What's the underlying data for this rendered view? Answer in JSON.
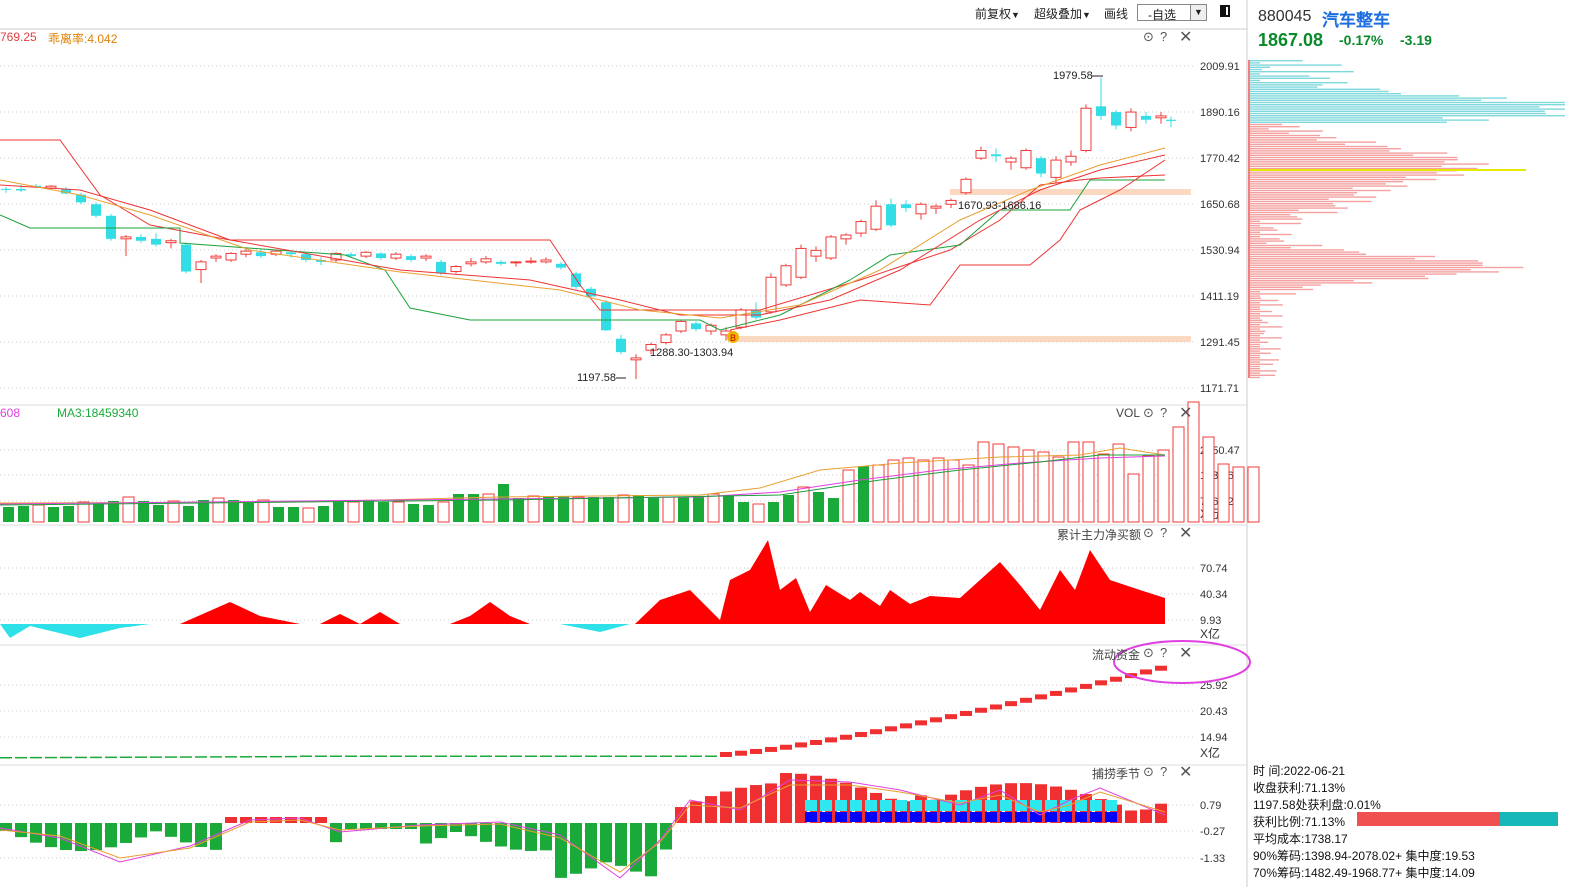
{
  "toolbar": {
    "fuquan": "前复权",
    "chaoji": "超级叠加",
    "huaxian": "画线",
    "zixuan": "-自选"
  },
  "stock": {
    "code": "880045",
    "name": "汽车整车",
    "price": "1867.08",
    "change_pct": "-0.17%",
    "change": "-3.19"
  },
  "main_panel": {
    "left_value": "769.25",
    "indicator": "乖离率:4.042",
    "y_ticks": [
      "2009.91",
      "1890.16",
      "1770.42",
      "1650.68",
      "1530.94",
      "1411.19",
      "1291.45",
      "1171.71"
    ],
    "annotations": {
      "high": "1979.58",
      "low": "1197.58",
      "zone_low": "1288.30-1303.94",
      "zone_high": "1670.93-1686.16",
      "b_marker": "B"
    }
  },
  "vol_panel": {
    "left_value": "608",
    "ma3": "MA3:18459340",
    "title": "VOL",
    "y_ticks": [
      "2150.47",
      "1433.65",
      "716.82"
    ],
    "unit": "X万"
  },
  "net_buy_panel": {
    "title": "累计主力净买额",
    "y_ticks": [
      "70.74",
      "40.34",
      "9.93"
    ],
    "unit": "X亿"
  },
  "flow_panel": {
    "title": "流动资金",
    "y_ticks": [
      "25.92",
      "20.43",
      "14.94"
    ],
    "unit": "X亿"
  },
  "season_panel": {
    "title": "捕捞季节",
    "y_ticks": [
      "0.79",
      "-0.27",
      "-1.33"
    ]
  },
  "chip_info": {
    "time": "时      间:2022-06-21",
    "profit": "收盘获利:71.13%",
    "profit_at": "1197.58处获利盘:0.01%",
    "profit_ratio": "获利比例:71.13%",
    "avg_cost": "平均成本:1738.17",
    "c90": "90%筹码:1398.94-2078.02+ 集中度:19.53",
    "c70": "70%筹码:1482.49-1968.77+ 集中度:14.09"
  },
  "colors": {
    "up": "#f23a3a",
    "down": "#1aaa3a",
    "down_candle": "#33dde6",
    "chip_upper": "#7fd8dc",
    "chip_lower": "#f5a0a0",
    "avg_line": "#e8e800"
  }
}
